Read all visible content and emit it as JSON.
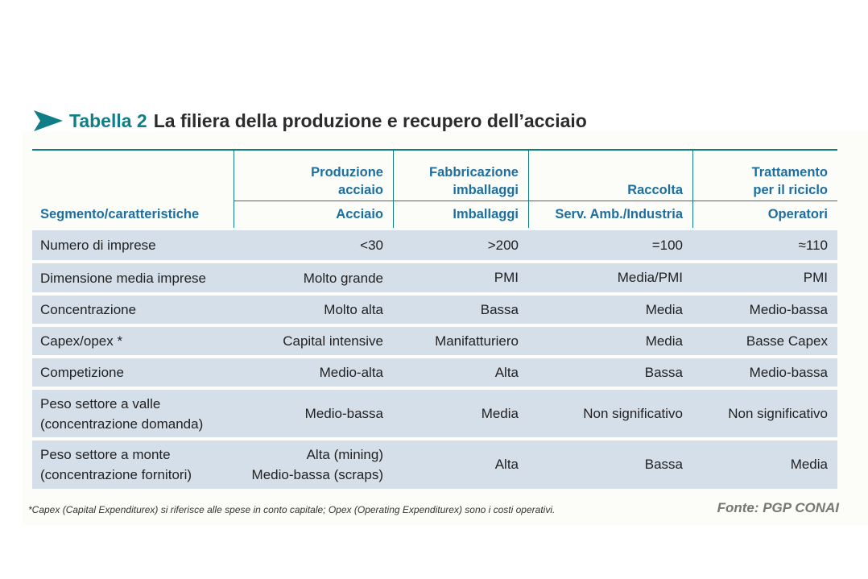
{
  "title": {
    "label": "Tabella 2",
    "text": "La filiera della produzione e recupero dell’acciaio",
    "accent_color": "#0f7e86",
    "icon": "arrow-icon"
  },
  "header": {
    "segment_label": "Segmento/caratteristiche",
    "columns": [
      {
        "title_line1": "Produzione",
        "title_line2": "acciaio",
        "sub": "Acciaio"
      },
      {
        "title_line1": "Fabbricazione",
        "title_line2": "imballaggi",
        "sub": "Imballaggi"
      },
      {
        "title_line1": "",
        "title_line2": "Raccolta",
        "sub": "Serv. Amb./Industria"
      },
      {
        "title_line1": "Trattamento",
        "title_line2": "per il riciclo",
        "sub": "Operatori"
      }
    ]
  },
  "rows": [
    {
      "label_line1": "Numero di imprese",
      "label_line2": "",
      "v1_line1": "<30",
      "v1_line2": "",
      "v2": ">200",
      "v3": "=100",
      "v4": "≈110"
    },
    {
      "label_line1": "Dimensione media imprese",
      "label_line2": "",
      "v1_line1": "Molto grande",
      "v1_line2": "",
      "v2": "PMI",
      "v3": "Media/PMI",
      "v4": "PMI"
    },
    {
      "label_line1": "Concentrazione",
      "label_line2": "",
      "v1_line1": "Molto alta",
      "v1_line2": "",
      "v2": "Bassa",
      "v3": "Media",
      "v4": "Medio-bassa"
    },
    {
      "label_line1": "Capex/opex *",
      "label_line2": "",
      "v1_line1": "Capital intensive",
      "v1_line2": "",
      "v2": "Manifatturiero",
      "v3": "Media",
      "v4": "Basse Capex"
    },
    {
      "label_line1": "Competizione",
      "label_line2": "",
      "v1_line1": "Medio-alta",
      "v1_line2": "",
      "v2": "Alta",
      "v3": "Bassa",
      "v4": "Medio-bassa"
    },
    {
      "label_line1": "Peso settore a valle",
      "label_line2": "(concentrazione domanda)",
      "v1_line1": "Medio-bassa",
      "v1_line2": "",
      "v2": "Media",
      "v3": "Non significativo",
      "v4": "Non significativo"
    },
    {
      "label_line1": "Peso settore a monte",
      "label_line2": "(concentrazione fornitori)",
      "v1_line1": "Alta (mining)",
      "v1_line2": "Medio-bassa (scraps)",
      "v2": "Alta",
      "v3": "Bassa",
      "v4": "Media"
    }
  ],
  "footnote": "*Capex (Capital Expenditurex) si riferisce alle spese in conto capitale; Opex (Operating Expenditurex) sono i costi operativi.",
  "source": "Fonte: PGP CONAI",
  "colors": {
    "header_text": "#1d6fa0",
    "row_bg": "#d5dfea",
    "rule": "#0f7e86"
  }
}
